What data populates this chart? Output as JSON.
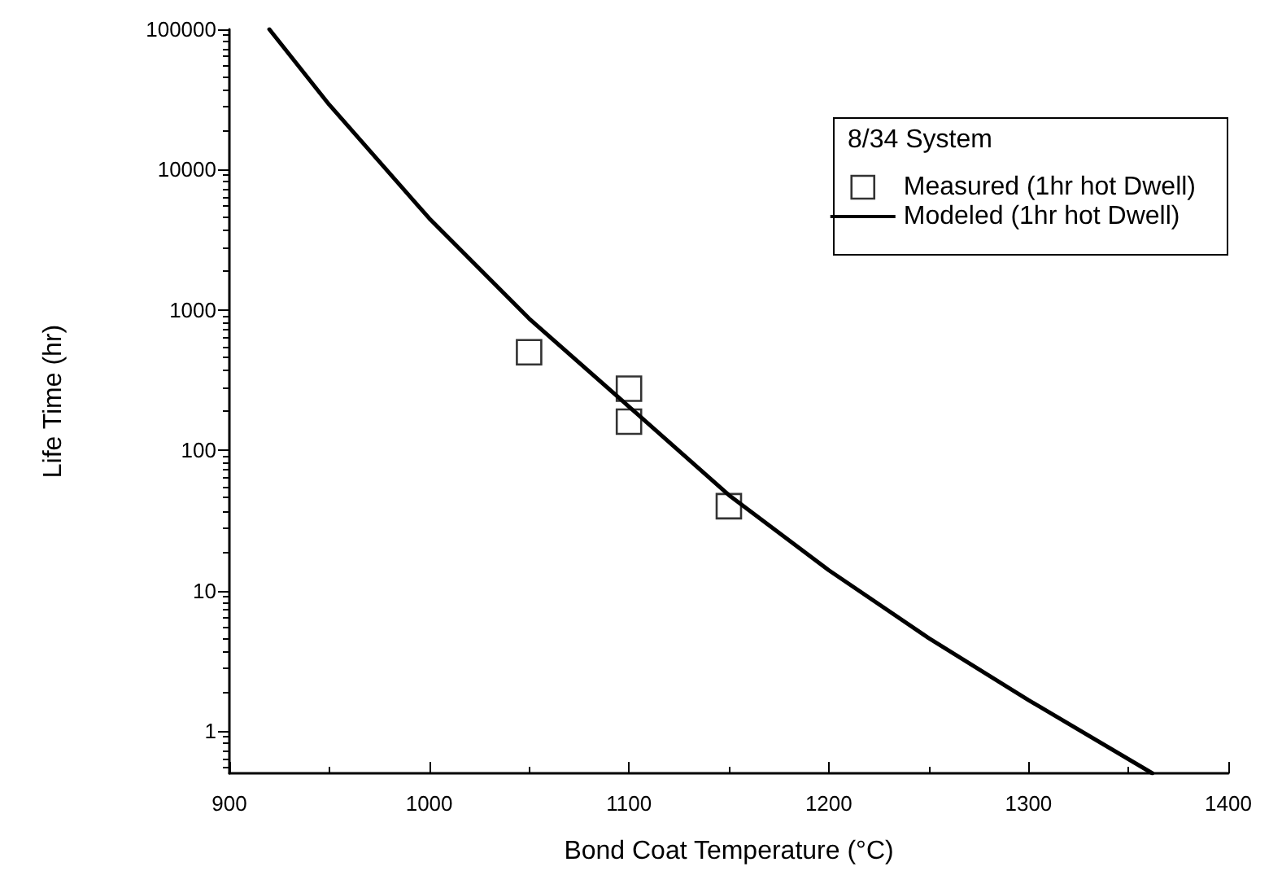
{
  "chart_data": {
    "type": "line",
    "xlabel": "Bond Coat Temperature (°C)",
    "ylabel": "Life Time (hr)",
    "legend_title": "8/34 System",
    "legend": "top right",
    "log": "y",
    "grid": false,
    "xlim": [
      900,
      1400
    ],
    "xticks": [
      900,
      1000,
      1100,
      1200,
      1300,
      1400
    ],
    "ylim": [
      0.5,
      100000
    ],
    "yticks": [
      1,
      10,
      100,
      1000,
      10000,
      100000
    ],
    "series": [
      {
        "name": "Measured (1hr hot Dwell)",
        "type": "scatter",
        "marker": "square",
        "color": "#000000",
        "x": [
          1050,
          1100,
          1100,
          1150
        ],
        "values": [
          500,
          275,
          160,
          40
        ]
      },
      {
        "name": "Modeled (1hr hot Dwell)",
        "type": "line",
        "marker": "none",
        "line_style": "solid",
        "color": "#000000",
        "x": [
          920,
          950,
          1000,
          1050,
          1100,
          1150,
          1200,
          1250,
          1300,
          1362
        ],
        "values": [
          100000,
          29000,
          4500,
          870,
          205,
          48,
          14,
          4.6,
          1.66,
          0.5
        ]
      }
    ]
  }
}
